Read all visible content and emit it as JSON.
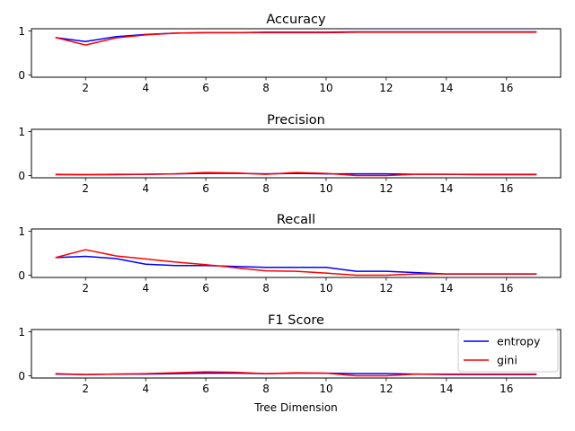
{
  "colors": {
    "entropy": "#0000ff",
    "gini": "#ff0000"
  },
  "legend": {
    "placement": "upper right of last subplot",
    "entries": [
      "entropy",
      "gini"
    ]
  },
  "chart_data": [
    {
      "type": "line",
      "title": "Accuracy",
      "xlabel": "",
      "xlim": [
        0.2,
        17.8
      ],
      "ylim": [
        -0.05,
        1.05
      ],
      "xticks": [
        2,
        4,
        6,
        8,
        10,
        12,
        14,
        16
      ],
      "yticks": [
        0,
        1
      ],
      "x": [
        1,
        2,
        3,
        4,
        5,
        6,
        7,
        8,
        9,
        10,
        11,
        12,
        13,
        14,
        15,
        16,
        17
      ],
      "series": [
        {
          "name": "entropy",
          "color": "#0000ff",
          "values": [
            0.85,
            0.76,
            0.87,
            0.92,
            0.95,
            0.96,
            0.96,
            0.97,
            0.97,
            0.97,
            0.98,
            0.98,
            0.98,
            0.98,
            0.98,
            0.98,
            0.98
          ]
        },
        {
          "name": "gini",
          "color": "#ff0000",
          "values": [
            0.85,
            0.68,
            0.84,
            0.91,
            0.95,
            0.96,
            0.96,
            0.96,
            0.96,
            0.96,
            0.97,
            0.97,
            0.97,
            0.97,
            0.97,
            0.97,
            0.97
          ]
        }
      ]
    },
    {
      "type": "line",
      "title": "Precision",
      "xlabel": "",
      "xlim": [
        0.2,
        17.8
      ],
      "ylim": [
        -0.05,
        1.05
      ],
      "xticks": [
        2,
        4,
        6,
        8,
        10,
        12,
        14,
        16
      ],
      "yticks": [
        0,
        1
      ],
      "x": [
        1,
        2,
        3,
        4,
        5,
        6,
        7,
        8,
        9,
        10,
        11,
        12,
        13,
        14,
        15,
        16,
        17
      ],
      "series": [
        {
          "name": "entropy",
          "color": "#0000ff",
          "values": [
            0.02,
            0.02,
            0.02,
            0.03,
            0.04,
            0.05,
            0.05,
            0.04,
            0.05,
            0.04,
            0.04,
            0.04,
            0.03,
            0.03,
            0.02,
            0.02,
            0.02
          ]
        },
        {
          "name": "gini",
          "color": "#ff0000",
          "values": [
            0.03,
            0.02,
            0.03,
            0.03,
            0.04,
            0.07,
            0.06,
            0.03,
            0.07,
            0.05,
            0.0,
            0.0,
            0.03,
            0.03,
            0.03,
            0.03,
            0.03
          ]
        }
      ]
    },
    {
      "type": "line",
      "title": "Recall",
      "xlabel": "",
      "xlim": [
        0.2,
        17.8
      ],
      "ylim": [
        -0.05,
        1.05
      ],
      "xticks": [
        2,
        4,
        6,
        8,
        10,
        12,
        14,
        16
      ],
      "yticks": [
        0,
        1
      ],
      "x": [
        1,
        2,
        3,
        4,
        5,
        6,
        7,
        8,
        9,
        10,
        11,
        12,
        13,
        14,
        15,
        16,
        17
      ],
      "series": [
        {
          "name": "entropy",
          "color": "#0000ff",
          "values": [
            0.4,
            0.43,
            0.38,
            0.25,
            0.22,
            0.22,
            0.2,
            0.18,
            0.18,
            0.18,
            0.09,
            0.09,
            0.06,
            0.03,
            0.03,
            0.03,
            0.03
          ]
        },
        {
          "name": "gini",
          "color": "#ff0000",
          "values": [
            0.4,
            0.58,
            0.44,
            0.37,
            0.3,
            0.24,
            0.17,
            0.1,
            0.09,
            0.05,
            0.0,
            0.0,
            0.03,
            0.03,
            0.03,
            0.03,
            0.03
          ]
        }
      ]
    },
    {
      "type": "line",
      "title": "F1 Score",
      "xlabel": "Tree Dimension",
      "xlim": [
        0.2,
        17.8
      ],
      "ylim": [
        -0.05,
        1.05
      ],
      "xticks": [
        2,
        4,
        6,
        8,
        10,
        12,
        14,
        16
      ],
      "yticks": [
        0,
        1
      ],
      "x": [
        1,
        2,
        3,
        4,
        5,
        6,
        7,
        8,
        9,
        10,
        11,
        12,
        13,
        14,
        15,
        16,
        17
      ],
      "series": [
        {
          "name": "entropy",
          "color": "#0000ff",
          "values": [
            0.04,
            0.03,
            0.04,
            0.04,
            0.05,
            0.06,
            0.06,
            0.05,
            0.06,
            0.06,
            0.05,
            0.05,
            0.04,
            0.03,
            0.03,
            0.03,
            0.03
          ]
        },
        {
          "name": "gini",
          "color": "#ff0000",
          "values": [
            0.05,
            0.03,
            0.04,
            0.05,
            0.07,
            0.09,
            0.08,
            0.05,
            0.07,
            0.06,
            0.0,
            0.0,
            0.04,
            0.04,
            0.04,
            0.04,
            0.04
          ]
        }
      ]
    }
  ]
}
